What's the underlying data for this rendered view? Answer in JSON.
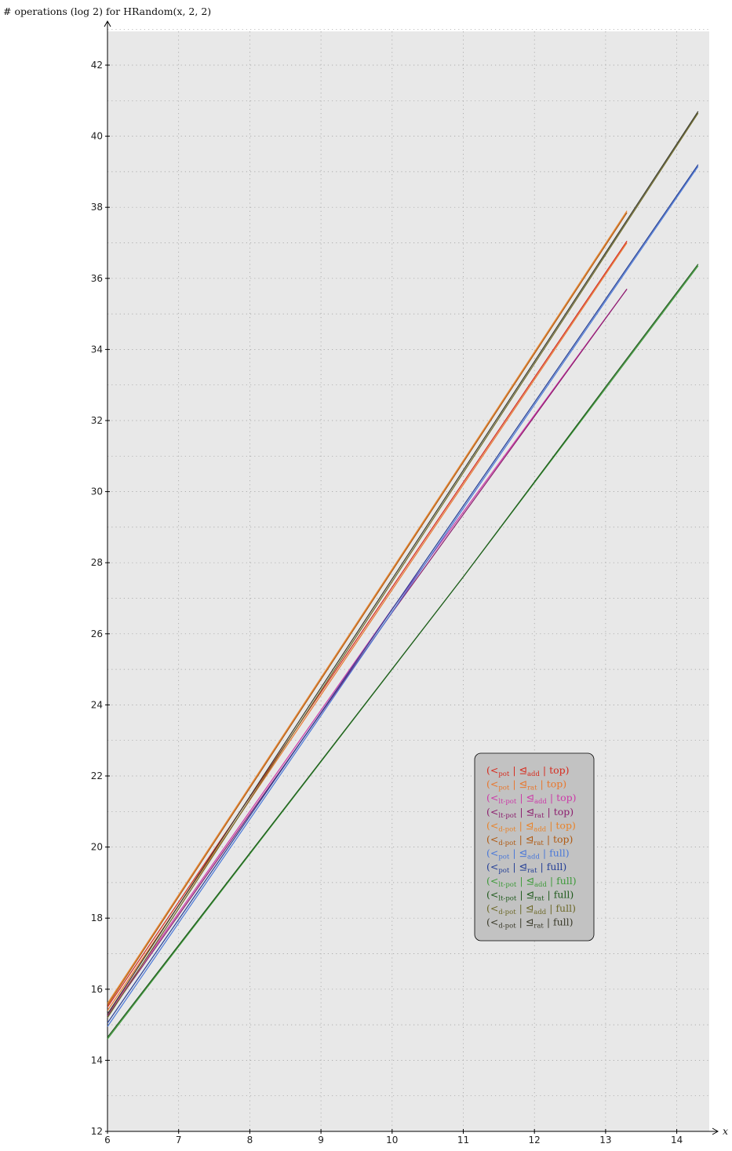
{
  "chart_data": {
    "type": "line",
    "ylabel": "# operations (log 2) for HRandom(x, 2, 2)",
    "xlabel": "x",
    "xlim": [
      6,
      14.5
    ],
    "ylim": [
      12,
      43
    ],
    "x_ticks": [
      6,
      7,
      8,
      9,
      10,
      11,
      12,
      13,
      14
    ],
    "y_ticks": [
      12,
      14,
      16,
      18,
      20,
      22,
      24,
      26,
      28,
      30,
      32,
      34,
      36,
      38,
      40,
      42
    ],
    "grid": true,
    "legend_placement": "lower-right",
    "series": [
      {
        "name": "(<pot | ⊴add | top)",
        "lt": "pot",
        "le": "add",
        "mode": "top",
        "color": "#d62b1e",
        "x": [
          6,
          13.3
        ],
        "y": [
          15.5,
          37.05
        ]
      },
      {
        "name": "(<pot | ⊴rat | top)",
        "lt": "pot",
        "le": "rat",
        "mode": "top",
        "color": "#e8772e",
        "x": [
          6,
          13.3
        ],
        "y": [
          15.4,
          37.0
        ]
      },
      {
        "name": "(<lt-pot | ⊴add | top)",
        "lt": "lt-pot",
        "le": "add",
        "mode": "top",
        "color": "#cc3aa8",
        "x": [
          6,
          10,
          13.3
        ],
        "y": [
          15.3,
          26.7,
          35.7
        ]
      },
      {
        "name": "(<lt-pot | ⊴rat | top)",
        "lt": "lt-pot",
        "le": "rat",
        "mode": "top",
        "color": "#8c1f6e",
        "x": [
          6,
          10,
          13.3
        ],
        "y": [
          15.25,
          26.6,
          35.7
        ]
      },
      {
        "name": "(<d-pot | ⊴add | top)",
        "lt": "d-pot",
        "le": "add",
        "mode": "top",
        "color": "#e8832a",
        "x": [
          6,
          13.3
        ],
        "y": [
          15.6,
          37.9
        ]
      },
      {
        "name": "(<d-pot | ⊴rat | top)",
        "lt": "d-pot",
        "le": "rat",
        "mode": "top",
        "color": "#b05a12",
        "x": [
          6,
          13.3
        ],
        "y": [
          15.55,
          37.85
        ]
      },
      {
        "name": "(<pot | ⊴add | full)",
        "lt": "pot",
        "le": "add",
        "mode": "full",
        "color": "#4a78d8",
        "x": [
          6,
          14.3
        ],
        "y": [
          14.95,
          39.15
        ]
      },
      {
        "name": "(<pot | ⊴rat | full)",
        "lt": "pot",
        "le": "rat",
        "mode": "full",
        "color": "#243f96",
        "x": [
          6,
          14.3
        ],
        "y": [
          15.05,
          39.2
        ]
      },
      {
        "name": "(<lt-pot | ⊴add | full)",
        "lt": "lt-pot",
        "le": "add",
        "mode": "full",
        "color": "#3e9a3a",
        "x": [
          6,
          11,
          13,
          14.3
        ],
        "y": [
          14.6,
          27.6,
          32.9,
          36.35
        ]
      },
      {
        "name": "(<lt-pot | ⊴rat | full)",
        "lt": "lt-pot",
        "le": "rat",
        "mode": "full",
        "color": "#1f5a1c",
        "x": [
          6,
          11,
          13,
          14.3
        ],
        "y": [
          14.65,
          27.6,
          32.95,
          36.4
        ]
      },
      {
        "name": "(<d-pot | ⊴add | full)",
        "lt": "d-pot",
        "le": "add",
        "mode": "full",
        "color": "#6e6a2a",
        "x": [
          6,
          14.3
        ],
        "y": [
          15.2,
          40.65
        ]
      },
      {
        "name": "(<d-pot | ⊴rat | full)",
        "lt": "d-pot",
        "le": "rat",
        "mode": "full",
        "color": "#3a3a2a",
        "x": [
          6,
          14.3
        ],
        "y": [
          15.3,
          40.7
        ]
      }
    ]
  }
}
